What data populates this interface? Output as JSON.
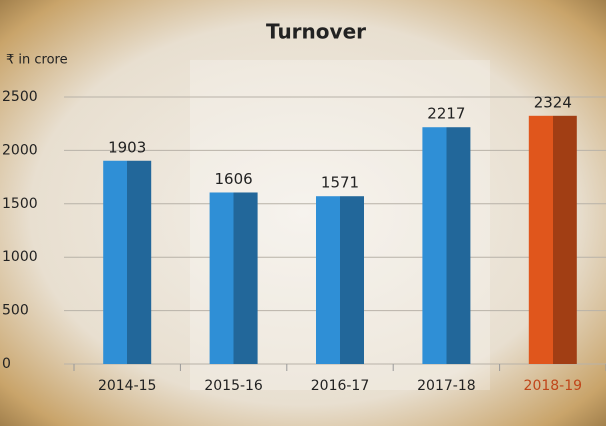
{
  "chart_data": {
    "type": "bar",
    "title": "Turnover",
    "y_axis_label": "₹ in crore",
    "categories": [
      "2014-15",
      "2015-16",
      "2016-17",
      "2017-18",
      "2018-19"
    ],
    "values": [
      1903,
      1606,
      1571,
      2217,
      2324
    ],
    "colors": [
      "#2f8fd6",
      "#2f8fd6",
      "#2f8fd6",
      "#2f8fd6",
      "#e0561c"
    ],
    "label_colors": [
      "#222222",
      "#222222",
      "#222222",
      "#222222",
      "#c0461a"
    ],
    "ylim": [
      0,
      2500
    ],
    "yticks": [
      0,
      500,
      1000,
      1500,
      2000,
      2500
    ],
    "grid": true
  }
}
